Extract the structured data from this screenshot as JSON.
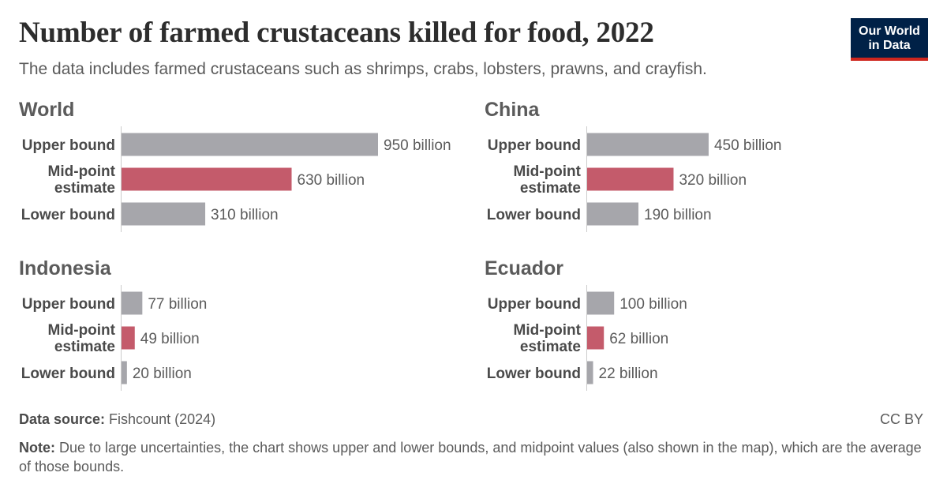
{
  "header": {
    "title": "Number of farmed crustaceans killed for food, 2022",
    "subtitle": "The data includes farmed crustaceans such as shrimps, crabs, lobsters, prawns, and crayfish."
  },
  "logo": {
    "line1": "Our World",
    "line2": "in Data"
  },
  "footer": {
    "source_label": "Data source:",
    "source_text": " Fishcount (2024)",
    "license": "CC BY",
    "note_label": "Note:",
    "note_text": " Due to large uncertainties, the chart shows upper and lower bounds, and midpoint values (also shown in the map), which are the average of those bounds."
  },
  "colors": {
    "bound": "#a6a6ab",
    "midpoint": "#c45b6b",
    "axis": "#cccccc"
  },
  "chart_data": [
    {
      "type": "bar",
      "title": "World",
      "categories": [
        "Upper bound",
        "Mid-point estimate",
        "Lower bound"
      ],
      "values": [
        950,
        630,
        310
      ],
      "value_labels": [
        "950 billion",
        "630 billion",
        "310 billion"
      ],
      "unit": "billion"
    },
    {
      "type": "bar",
      "title": "China",
      "categories": [
        "Upper bound",
        "Mid-point estimate",
        "Lower bound"
      ],
      "values": [
        450,
        320,
        190
      ],
      "value_labels": [
        "450 billion",
        "320 billion",
        "190 billion"
      ],
      "unit": "billion"
    },
    {
      "type": "bar",
      "title": "Indonesia",
      "categories": [
        "Upper bound",
        "Mid-point estimate",
        "Lower bound"
      ],
      "values": [
        77,
        49,
        20
      ],
      "value_labels": [
        "77 billion",
        "49 billion",
        "20 billion"
      ],
      "unit": "billion"
    },
    {
      "type": "bar",
      "title": "Ecuador",
      "categories": [
        "Upper bound",
        "Mid-point estimate",
        "Lower bound"
      ],
      "values": [
        100,
        62,
        22
      ],
      "value_labels": [
        "100 billion",
        "62 billion",
        "22 billion"
      ],
      "unit": "billion"
    }
  ]
}
